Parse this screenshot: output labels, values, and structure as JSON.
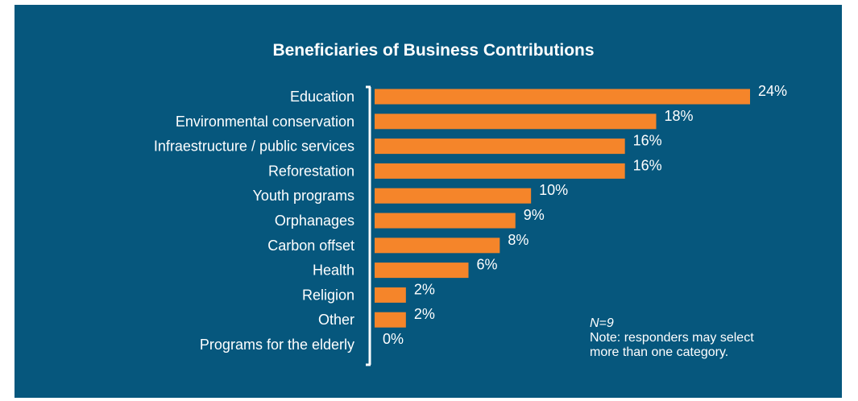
{
  "chart_data": {
    "type": "bar",
    "orientation": "horizontal",
    "title": "Beneficiaries of Business Contributions",
    "categories": [
      "Education",
      "Environmental conservation",
      "Infraestructure / public services",
      "Reforestation",
      "Youth programs",
      "Orphanages",
      "Carbon offset",
      "Health",
      "Religion",
      "Other",
      "Programs for the elderly"
    ],
    "values": [
      24,
      18,
      16,
      16,
      10,
      9,
      8,
      6,
      2,
      2,
      0
    ],
    "value_labels": [
      "24%",
      "18%",
      "16%",
      "16%",
      "10%",
      "9%",
      "8%",
      "6%",
      "2%",
      "2%",
      "0%"
    ],
    "xlim": [
      0,
      24
    ],
    "grid": false,
    "legend": "none",
    "notes": {
      "n": "N=9",
      "line1": "Note: responders may select",
      "line2": "more than one category."
    }
  },
  "colors": {
    "background": "#06577d",
    "bar": "#f5852a",
    "text": "#ffffff"
  }
}
